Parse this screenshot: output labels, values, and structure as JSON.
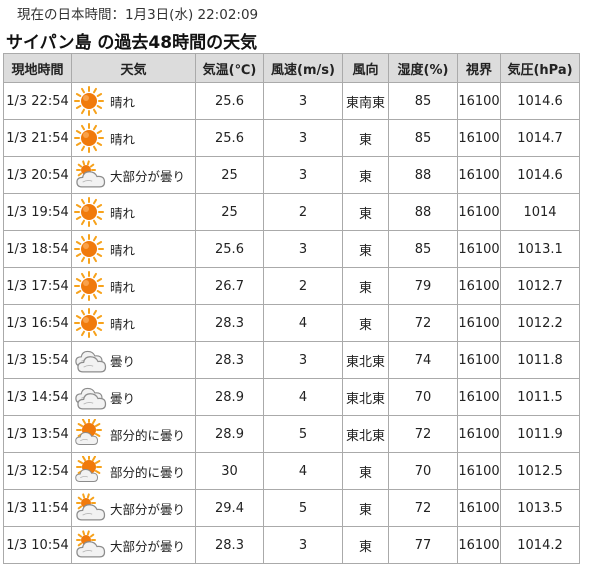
{
  "header": {
    "current_jst": "現在の日本時間：1月3日(水) 22:02:09",
    "title": "サイパン島 の過去48時間の天気"
  },
  "columns": [
    "現地時間",
    "天気",
    "気温(℃)",
    "風速(m/s)",
    "風向",
    "湿度(%)",
    "視界",
    "気圧(hPa)"
  ],
  "icons": {
    "sunny": "sun-icon",
    "mostly_cloudy": "mostly-cloudy-icon",
    "cloudy": "cloud-icon",
    "partly_cloudy": "partly-cloudy-icon"
  },
  "colors": {
    "sun": "#f07a0c",
    "sun_rays": "#f7a21b",
    "cloud": "#cfcfcf",
    "header_bg": "#dcdcdc",
    "border": "#aaaaaa"
  },
  "rows": [
    {
      "time": "1/3 22:54",
      "icon": "sunny",
      "weather": "晴れ",
      "temp": "25.6",
      "wind_speed": "3",
      "wind_dir": "東南東",
      "humidity": "85",
      "visibility": "16100",
      "pressure": "1014.6"
    },
    {
      "time": "1/3 21:54",
      "icon": "sunny",
      "weather": "晴れ",
      "temp": "25.6",
      "wind_speed": "3",
      "wind_dir": "東",
      "humidity": "85",
      "visibility": "16100",
      "pressure": "1014.7"
    },
    {
      "time": "1/3 20:54",
      "icon": "mostly_cloudy",
      "weather": "大部分が曇り",
      "temp": "25",
      "wind_speed": "3",
      "wind_dir": "東",
      "humidity": "88",
      "visibility": "16100",
      "pressure": "1014.6"
    },
    {
      "time": "1/3 19:54",
      "icon": "sunny",
      "weather": "晴れ",
      "temp": "25",
      "wind_speed": "2",
      "wind_dir": "東",
      "humidity": "88",
      "visibility": "16100",
      "pressure": "1014"
    },
    {
      "time": "1/3 18:54",
      "icon": "sunny",
      "weather": "晴れ",
      "temp": "25.6",
      "wind_speed": "3",
      "wind_dir": "東",
      "humidity": "85",
      "visibility": "16100",
      "pressure": "1013.1"
    },
    {
      "time": "1/3 17:54",
      "icon": "sunny",
      "weather": "晴れ",
      "temp": "26.7",
      "wind_speed": "2",
      "wind_dir": "東",
      "humidity": "79",
      "visibility": "16100",
      "pressure": "1012.7"
    },
    {
      "time": "1/3 16:54",
      "icon": "sunny",
      "weather": "晴れ",
      "temp": "28.3",
      "wind_speed": "4",
      "wind_dir": "東",
      "humidity": "72",
      "visibility": "16100",
      "pressure": "1012.2"
    },
    {
      "time": "1/3 15:54",
      "icon": "cloudy",
      "weather": "曇り",
      "temp": "28.3",
      "wind_speed": "3",
      "wind_dir": "東北東",
      "humidity": "74",
      "visibility": "16100",
      "pressure": "1011.8"
    },
    {
      "time": "1/3 14:54",
      "icon": "cloudy",
      "weather": "曇り",
      "temp": "28.9",
      "wind_speed": "4",
      "wind_dir": "東北東",
      "humidity": "70",
      "visibility": "16100",
      "pressure": "1011.5"
    },
    {
      "time": "1/3 13:54",
      "icon": "partly_cloudy",
      "weather": "部分的に曇り",
      "temp": "28.9",
      "wind_speed": "5",
      "wind_dir": "東北東",
      "humidity": "72",
      "visibility": "16100",
      "pressure": "1011.9"
    },
    {
      "time": "1/3 12:54",
      "icon": "partly_cloudy",
      "weather": "部分的に曇り",
      "temp": "30",
      "wind_speed": "4",
      "wind_dir": "東",
      "humidity": "70",
      "visibility": "16100",
      "pressure": "1012.5"
    },
    {
      "time": "1/3 11:54",
      "icon": "mostly_cloudy",
      "weather": "大部分が曇り",
      "temp": "29.4",
      "wind_speed": "5",
      "wind_dir": "東",
      "humidity": "72",
      "visibility": "16100",
      "pressure": "1013.5"
    },
    {
      "time": "1/3 10:54",
      "icon": "mostly_cloudy",
      "weather": "大部分が曇り",
      "temp": "28.3",
      "wind_speed": "3",
      "wind_dir": "東",
      "humidity": "77",
      "visibility": "16100",
      "pressure": "1014.2"
    }
  ]
}
